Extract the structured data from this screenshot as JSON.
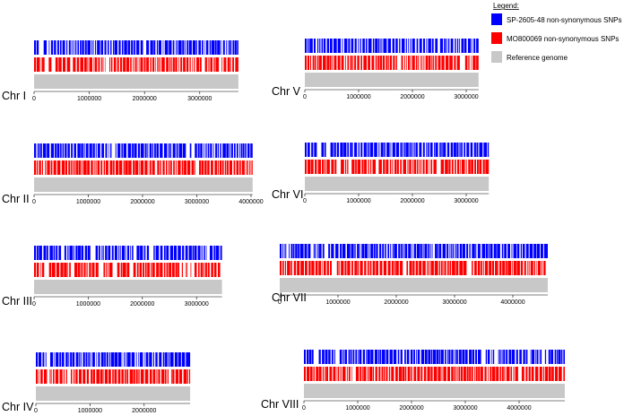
{
  "legend": {
    "title": "Legend:",
    "items": [
      {
        "label": "SP-2605-48 non-synonymous SNPs",
        "color": "#0000ff"
      },
      {
        "label": "MO800069 non-synonymous SNPs",
        "color": "#ff0000"
      },
      {
        "label": "Reference genome",
        "color": "#c8c8c8"
      }
    ]
  },
  "chart_data": {
    "type": "genome-track",
    "tracks": [
      "SP-2605-48 non-synonymous SNPs",
      "MO800069 non-synonymous SNPs",
      "Reference genome"
    ],
    "colors": {
      "sp": "#0000ff",
      "mo": "#ff0000",
      "ref": "#c8c8c8"
    },
    "chromosomes": [
      {
        "name": "Chr I",
        "length": 3700000,
        "ticks": [
          "0",
          "1000000",
          "2000000",
          "3000000"
        ]
      },
      {
        "name": "Chr II",
        "length": 4030000,
        "ticks": [
          "0",
          "1000000",
          "2000000",
          "3000000",
          "4000000"
        ]
      },
      {
        "name": "Chr III",
        "length": 3470000,
        "ticks": [
          "0",
          "1000000",
          "2000000",
          "3000000"
        ]
      },
      {
        "name": "Chr IV",
        "length": 2850000,
        "ticks": [
          "0",
          "1000000",
          "2000000"
        ]
      },
      {
        "name": "Chr V",
        "length": 3230000,
        "ticks": [
          "0",
          "1000000",
          "2000000",
          "3000000"
        ]
      },
      {
        "name": "Chr VI",
        "length": 3420000,
        "ticks": [
          "0",
          "1000000",
          "2000000",
          "3000000"
        ]
      },
      {
        "name": "Chr VII",
        "length": 4600000,
        "ticks": [
          "0",
          "1000000",
          "2000000",
          "3000000",
          "4000000"
        ]
      },
      {
        "name": "Chr VIII",
        "length": 4850000,
        "ticks": [
          "0",
          "1000000",
          "2000000",
          "3000000",
          "4000000"
        ]
      }
    ]
  }
}
